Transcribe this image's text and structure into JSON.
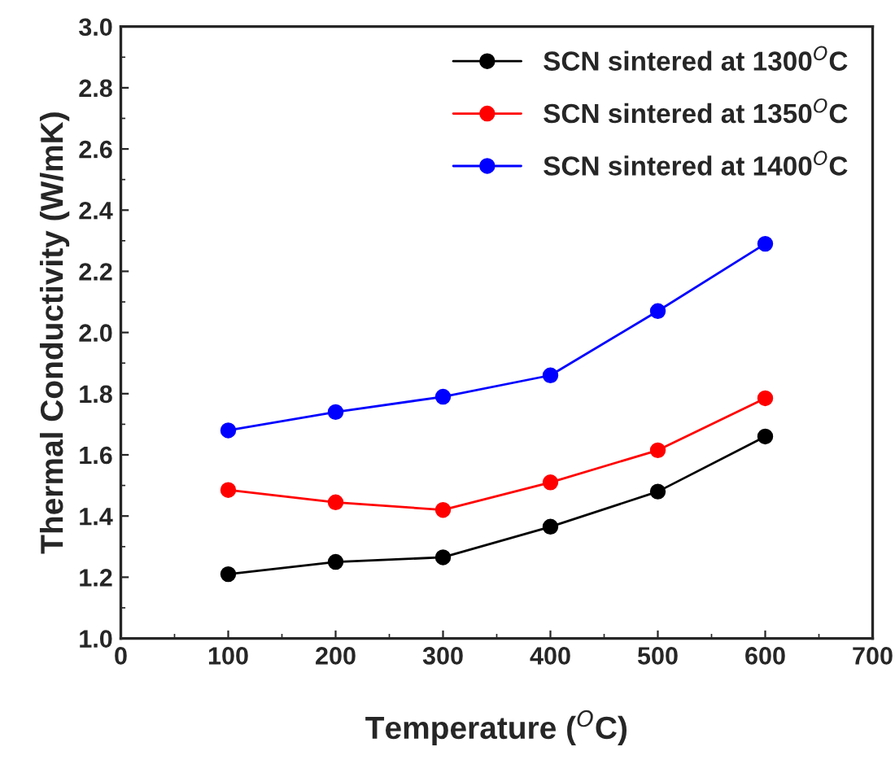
{
  "chart_data": {
    "type": "line",
    "xlabel": "Temperature ($^{O}$C)",
    "ylabel": "Thermal Conductivity (W/mK)",
    "x": [
      100,
      200,
      300,
      400,
      500,
      600
    ],
    "series": [
      {
        "name": "SCN sintered at 1300$^{O}$C",
        "color": "#000000",
        "values": [
          1.21,
          1.25,
          1.265,
          1.365,
          1.48,
          1.66
        ]
      },
      {
        "name": "SCN sintered at 1350$^{O}$C",
        "color": "#ff0000",
        "values": [
          1.485,
          1.445,
          1.42,
          1.51,
          1.615,
          1.785
        ]
      },
      {
        "name": "SCN sintered at 1400$^{O}$C",
        "color": "#0000ff",
        "values": [
          1.68,
          1.74,
          1.79,
          1.86,
          2.07,
          2.29
        ]
      }
    ],
    "xlim": [
      0,
      700
    ],
    "xticks": [
      0,
      100,
      200,
      300,
      400,
      500,
      600,
      700
    ],
    "ylim": [
      1.0,
      3.0
    ],
    "yticks": [
      {
        "value": 1.0,
        "label": "1.0"
      },
      {
        "value": 1.2,
        "label": "1.2"
      },
      {
        "value": 1.4,
        "label": "1.4"
      },
      {
        "value": 1.6,
        "label": "1.6"
      },
      {
        "value": 1.8,
        "label": "1.8"
      },
      {
        "value": 2.0,
        "label": "2.0"
      },
      {
        "value": 2.2,
        "label": "2.2"
      },
      {
        "value": 2.4,
        "label": "2.4"
      },
      {
        "value": 2.6,
        "label": "2.6"
      },
      {
        "value": 2.8,
        "label": "2.8"
      },
      {
        "value": 3.0,
        "label": "3.0"
      }
    ],
    "marker": "circle",
    "line_style": "solid",
    "legend": "top right",
    "grid": false
  }
}
